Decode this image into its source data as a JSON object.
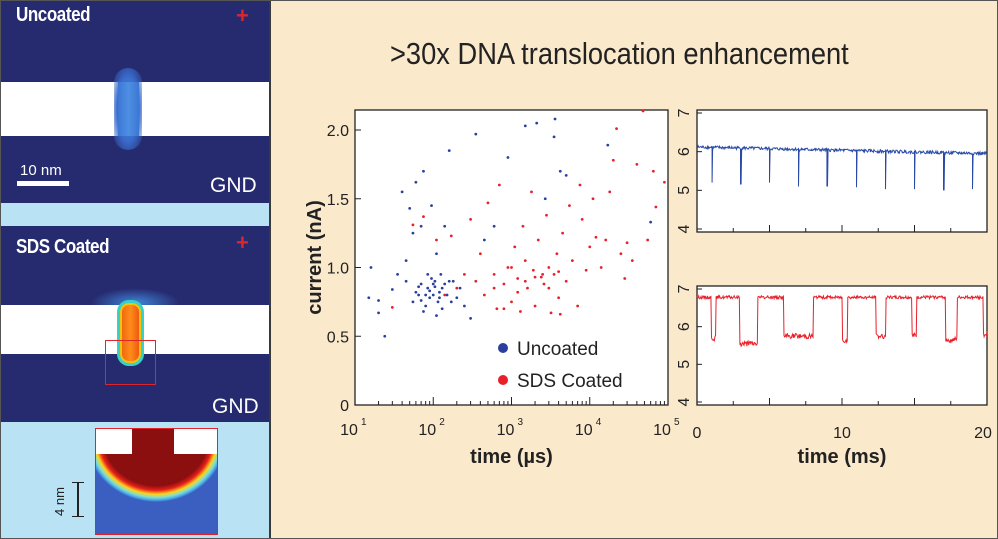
{
  "title": ">30x DNA translocation enhancement",
  "left_panel": {
    "top_label": "Uncoated",
    "bottom_label": "SDS Coated",
    "plus": "+",
    "gnd": "GND",
    "scale_bar": "10 nm",
    "inset_scale": "4 nm"
  },
  "colors": {
    "navy": "#262a6f",
    "light_blue": "#b9e3f5",
    "background": "#fbe9cc",
    "uncoated": "#2a3f9e",
    "coated": "#e8202a"
  },
  "chart_data": [
    {
      "type": "scatter",
      "xlabel": "time (µs)",
      "ylabel": "current (nA)",
      "x_scale": "log",
      "xlim": [
        10,
        100000
      ],
      "ylim": [
        0,
        2.15
      ],
      "xticks": [
        "10",
        "10",
        "10",
        "10",
        "10"
      ],
      "xtick_exp": [
        "1",
        "2",
        "3",
        "4",
        "5"
      ],
      "yticks": [
        "0",
        "0.5",
        "1.0",
        "1.5",
        "2.0"
      ],
      "legend_position": "bottom-right",
      "series": [
        {
          "name": "Uncoated",
          "color": "#2a3f9e",
          "points": [
            [
              15,
              0.78
            ],
            [
              16,
              1.0
            ],
            [
              20,
              0.76
            ],
            [
              20,
              0.67
            ],
            [
              24,
              0.5
            ],
            [
              30,
              0.84
            ],
            [
              35,
              0.95
            ],
            [
              40,
              1.55
            ],
            [
              45,
              0.9
            ],
            [
              50,
              1.43
            ],
            [
              55,
              0.75
            ],
            [
              60,
              1.62
            ],
            [
              65,
              0.8
            ],
            [
              70,
              0.88
            ],
            [
              75,
              1.7
            ],
            [
              80,
              0.72
            ],
            [
              85,
              0.85
            ],
            [
              90,
              0.78
            ],
            [
              95,
              0.92
            ],
            [
              100,
              0.8
            ],
            [
              105,
              0.86
            ],
            [
              110,
              1.1
            ],
            [
              115,
              0.75
            ],
            [
              120,
              0.82
            ],
            [
              125,
              0.95
            ],
            [
              130,
              0.7
            ],
            [
              140,
              0.88
            ],
            [
              150,
              0.8
            ],
            [
              160,
              1.85
            ],
            [
              170,
              0.75
            ],
            [
              180,
              0.9
            ],
            [
              200,
              0.78
            ],
            [
              220,
              0.85
            ],
            [
              250,
              0.72
            ],
            [
              300,
              0.63
            ],
            [
              350,
              1.97
            ],
            [
              450,
              1.2
            ],
            [
              600,
              1.3
            ],
            [
              900,
              1.8
            ],
            [
              1500,
              2.03
            ],
            [
              2100,
              2.05
            ],
            [
              2700,
              1.5
            ],
            [
              3500,
              1.95
            ],
            [
              3600,
              2.08
            ],
            [
              4200,
              1.7
            ],
            [
              5000,
              1.67
            ],
            [
              17000,
              1.89
            ],
            [
              60000,
              1.33
            ],
            [
              70,
              1.3
            ],
            [
              55,
              1.25
            ],
            [
              45,
              1.05
            ],
            [
              95,
              1.45
            ],
            [
              140,
              1.3
            ],
            [
              75,
              0.68
            ],
            [
              110,
              0.65
            ],
            [
              160,
              0.9
            ],
            [
              85,
              0.95
            ],
            [
              60,
              0.82
            ],
            [
              130,
              0.85
            ],
            [
              100,
              0.88
            ],
            [
              90,
              0.83
            ],
            [
              80,
              0.8
            ],
            [
              120,
              0.78
            ],
            [
              70,
              0.76
            ],
            [
              105,
              0.9
            ],
            [
              65,
              0.86
            ]
          ]
        },
        {
          "name": "SDS Coated",
          "color": "#e8202a",
          "points": [
            [
              30,
              0.71
            ],
            [
              55,
              1.31
            ],
            [
              75,
              1.37
            ],
            [
              110,
              1.2
            ],
            [
              140,
              0.8
            ],
            [
              170,
              1.23
            ],
            [
              200,
              0.85
            ],
            [
              250,
              0.95
            ],
            [
              300,
              1.35
            ],
            [
              350,
              0.9
            ],
            [
              400,
              1.1
            ],
            [
              450,
              0.8
            ],
            [
              500,
              1.47
            ],
            [
              600,
              0.95
            ],
            [
              650,
              0.7
            ],
            [
              700,
              1.6
            ],
            [
              800,
              0.88
            ],
            [
              900,
              1.0
            ],
            [
              1000,
              0.75
            ],
            [
              1100,
              1.15
            ],
            [
              1200,
              0.92
            ],
            [
              1300,
              0.68
            ],
            [
              1400,
              1.3
            ],
            [
              1500,
              1.05
            ],
            [
              1600,
              0.85
            ],
            [
              1800,
              1.55
            ],
            [
              1900,
              0.98
            ],
            [
              2000,
              0.72
            ],
            [
              2200,
              1.2
            ],
            [
              2400,
              0.93
            ],
            [
              2600,
              0.88
            ],
            [
              2800,
              1.38
            ],
            [
              3000,
              1.0
            ],
            [
              3200,
              0.67
            ],
            [
              3500,
              0.95
            ],
            [
              3800,
              1.1
            ],
            [
              4000,
              0.78
            ],
            [
              4200,
              0.66
            ],
            [
              4500,
              1.25
            ],
            [
              5000,
              0.9
            ],
            [
              5500,
              1.45
            ],
            [
              6000,
              1.05
            ],
            [
              7000,
              0.72
            ],
            [
              7500,
              1.6
            ],
            [
              8000,
              1.35
            ],
            [
              9000,
              0.98
            ],
            [
              10000,
              1.15
            ],
            [
              11000,
              1.5
            ],
            [
              12000,
              1.22
            ],
            [
              14000,
              1.0
            ],
            [
              16000,
              1.2
            ],
            [
              18000,
              1.55
            ],
            [
              20000,
              1.78
            ],
            [
              22000,
              2.01
            ],
            [
              25000,
              1.1
            ],
            [
              28000,
              0.92
            ],
            [
              30000,
              1.18
            ],
            [
              35000,
              1.05
            ],
            [
              40000,
              1.75
            ],
            [
              48000,
              2.15
            ],
            [
              55000,
              1.2
            ],
            [
              65000,
              1.7
            ],
            [
              70000,
              1.44
            ],
            [
              90000,
              1.62
            ],
            [
              1500,
              0.9
            ],
            [
              2500,
              0.95
            ],
            [
              600,
              0.85
            ],
            [
              3000,
              0.85
            ],
            [
              800,
              0.7
            ],
            [
              1000,
              1.0
            ],
            [
              2000,
              0.93
            ],
            [
              4000,
              0.97
            ],
            [
              1200,
              0.82
            ]
          ]
        }
      ]
    },
    {
      "type": "line",
      "xlim": [
        0,
        20
      ],
      "ylim": [
        4,
        7
      ],
      "yticks": [
        "4",
        "5",
        "6",
        "7"
      ],
      "color": "#2a4aa8",
      "baseline": {
        "start": 6.12,
        "end": 5.95
      },
      "spikes": [
        [
          1.03,
          5.2
        ],
        [
          3.02,
          5.15
        ],
        [
          5.0,
          5.2
        ],
        [
          6.99,
          5.1
        ],
        [
          8.98,
          5.1
        ],
        [
          11.0,
          5.08
        ],
        [
          12.99,
          5.03
        ],
        [
          15.0,
          5.03
        ],
        [
          17.02,
          5.0
        ],
        [
          19.0,
          5.03
        ]
      ]
    },
    {
      "type": "line",
      "xlabel": "time (ms)",
      "xlim": [
        0,
        20
      ],
      "ylim": [
        4,
        7
      ],
      "xticks": [
        "0",
        "10",
        "20"
      ],
      "yticks": [
        "4",
        "5",
        "6",
        "7"
      ],
      "color": "#e8202a",
      "open_level": 6.78,
      "blockades": [
        [
          0.99,
          1.29,
          5.7
        ],
        [
          2.95,
          4.19,
          5.55
        ],
        [
          5.99,
          8.02,
          5.75
        ],
        [
          10.02,
          10.39,
          5.65
        ],
        [
          12.35,
          13.0,
          5.75
        ],
        [
          14.82,
          15.12,
          5.75
        ],
        [
          17.12,
          17.93,
          5.65
        ],
        [
          19.72,
          20,
          5.8
        ]
      ]
    }
  ]
}
